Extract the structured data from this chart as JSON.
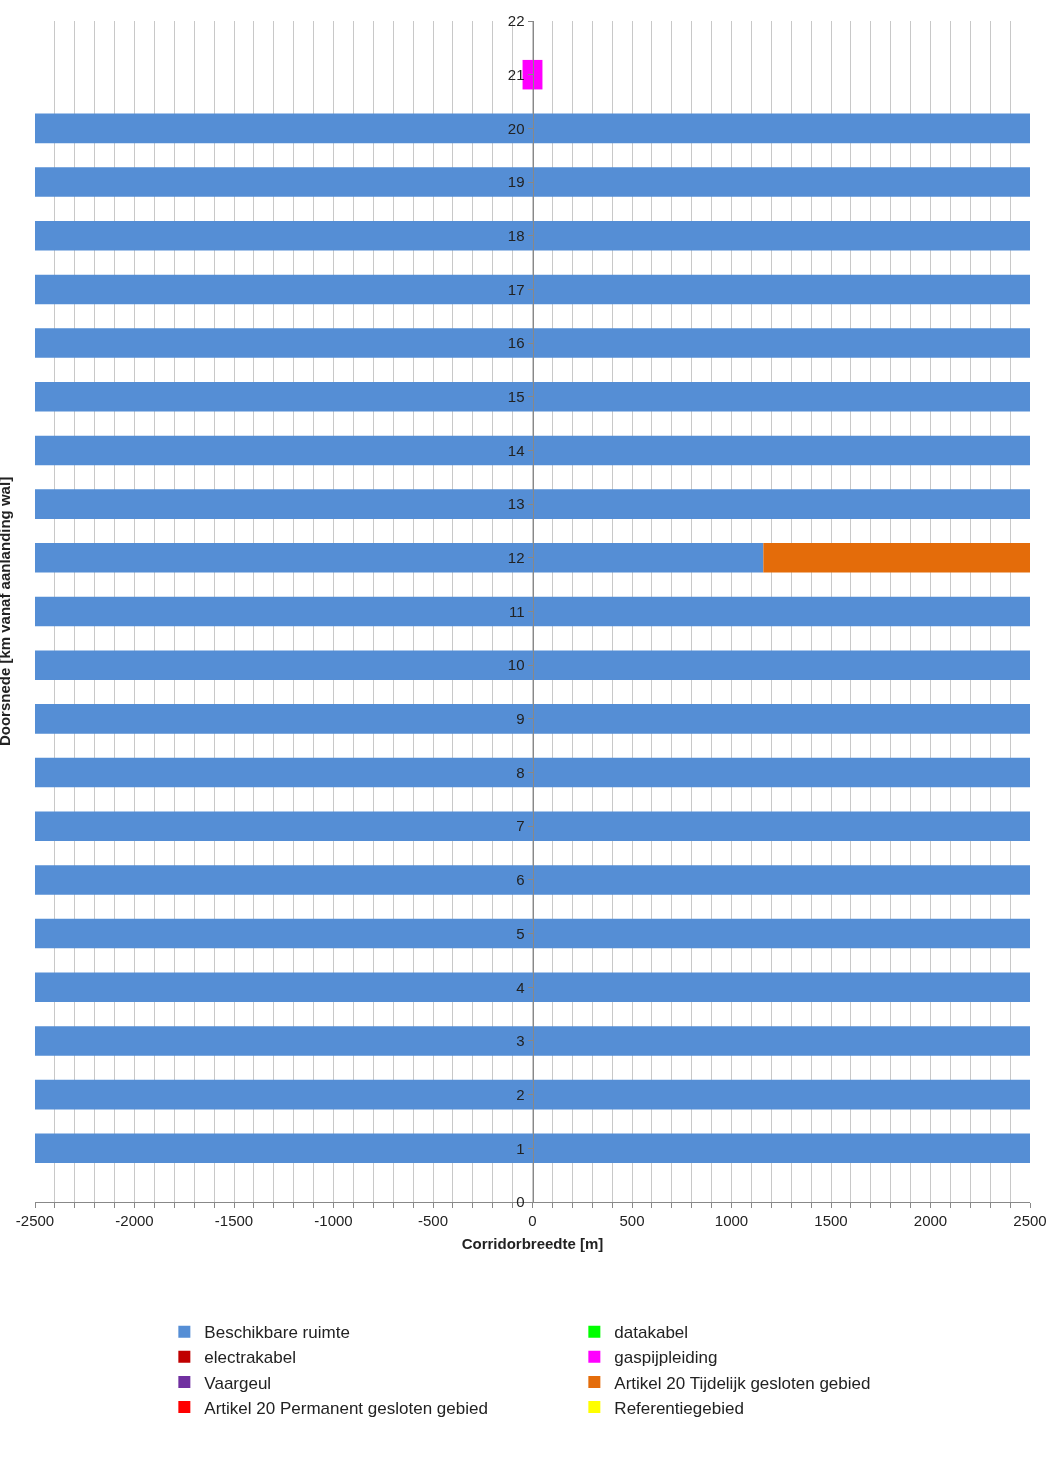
{
  "chart_data": {
    "type": "bar",
    "orientation": "horizontal",
    "xlabel": "Corridorbreedte [m]",
    "ylabel": "Doorsnede [km vanaf aanlanding wal]",
    "x": [
      1,
      2,
      3,
      4,
      5,
      6,
      7,
      8,
      9,
      10,
      11,
      12,
      13,
      14,
      15,
      16,
      17,
      18,
      19,
      20,
      21
    ],
    "series": [
      {
        "name": "Beschikbare ruimte",
        "color": "#558ed5",
        "values": [
          5000,
          5000,
          5000,
          5000,
          5000,
          5000,
          5000,
          5000,
          5000,
          5000,
          5000,
          3660,
          5000,
          5000,
          5000,
          5000,
          5000,
          5000,
          5000,
          5000,
          null
        ],
        "base": [
          -2500,
          -2500,
          -2500,
          -2500,
          -2500,
          -2500,
          -2500,
          -2500,
          -2500,
          -2500,
          -2500,
          -2500,
          -2500,
          -2500,
          -2500,
          -2500,
          -2500,
          -2500,
          -2500,
          -2500,
          null
        ]
      },
      {
        "name": "datakabel",
        "color": "#00ff00",
        "values": [
          null,
          null,
          null,
          null,
          null,
          null,
          null,
          null,
          null,
          null,
          null,
          null,
          null,
          null,
          null,
          null,
          null,
          null,
          null,
          null,
          null
        ]
      },
      {
        "name": "electrakabel",
        "color": "#c00000",
        "values": [
          null,
          null,
          null,
          null,
          null,
          null,
          null,
          null,
          null,
          null,
          null,
          null,
          null,
          null,
          null,
          null,
          null,
          null,
          null,
          null,
          null
        ]
      },
      {
        "name": "gaspijpleiding",
        "color": "#ff00ff",
        "values": [
          null,
          null,
          null,
          null,
          null,
          null,
          null,
          null,
          null,
          null,
          null,
          null,
          null,
          null,
          null,
          null,
          null,
          null,
          null,
          null,
          100
        ],
        "base": [
          null,
          null,
          null,
          null,
          null,
          null,
          null,
          null,
          null,
          null,
          null,
          null,
          null,
          null,
          null,
          null,
          null,
          null,
          null,
          null,
          -50
        ]
      },
      {
        "name": "Vaargeul",
        "color": "#7030a0",
        "values": [
          null,
          null,
          null,
          null,
          null,
          null,
          null,
          null,
          null,
          null,
          null,
          null,
          null,
          null,
          null,
          null,
          null,
          null,
          null,
          null,
          null
        ]
      },
      {
        "name": "Artikel 20 Tijdelijk gesloten gebied",
        "color": "#e46c0a",
        "values": [
          null,
          null,
          null,
          null,
          null,
          null,
          null,
          null,
          null,
          null,
          null,
          1340,
          null,
          null,
          null,
          null,
          null,
          null,
          null,
          null,
          null
        ],
        "base": [
          null,
          null,
          null,
          null,
          null,
          null,
          null,
          null,
          null,
          null,
          null,
          1160,
          null,
          null,
          null,
          null,
          null,
          null,
          null,
          null,
          null
        ]
      },
      {
        "name": "Artikel 20 Permanent gesloten gebied",
        "color": "#ff0000",
        "values": [
          null,
          null,
          null,
          null,
          null,
          null,
          null,
          null,
          null,
          null,
          null,
          null,
          null,
          null,
          null,
          null,
          null,
          null,
          null,
          null,
          null
        ]
      },
      {
        "name": "Referentiegebied",
        "color": "#ffff00",
        "values": [
          null,
          null,
          null,
          null,
          null,
          null,
          null,
          null,
          null,
          null,
          null,
          null,
          null,
          null,
          null,
          null,
          null,
          null,
          null,
          null,
          null
        ]
      }
    ],
    "xlim": [
      -2500,
      2500
    ],
    "xticks": [
      -2500,
      {
        "value": -2400,
        "label": null
      },
      {
        "value": -2300,
        "label": null
      },
      {
        "value": -2200,
        "label": null
      },
      {
        "value": -2100,
        "label": null
      },
      -2000,
      {
        "value": -1900,
        "label": null
      },
      {
        "value": -1800,
        "label": null
      },
      {
        "value": -1700,
        "label": null
      },
      {
        "value": -1600,
        "label": null
      },
      -1500,
      {
        "value": -1400,
        "label": null
      },
      {
        "value": -1300,
        "label": null
      },
      {
        "value": -1200,
        "label": null
      },
      {
        "value": -1100,
        "label": null
      },
      -1000,
      {
        "value": -900,
        "label": null
      },
      {
        "value": -800,
        "label": null
      },
      {
        "value": -700,
        "label": null
      },
      {
        "value": -600,
        "label": null
      },
      -500,
      {
        "value": -400,
        "label": null
      },
      {
        "value": -300,
        "label": null
      },
      {
        "value": -200,
        "label": null
      },
      {
        "value": -100,
        "label": null
      },
      0,
      {
        "value": 100,
        "label": null
      },
      {
        "value": 200,
        "label": null
      },
      {
        "value": 300,
        "label": null
      },
      {
        "value": 400,
        "label": null
      },
      500,
      {
        "value": 600,
        "label": null
      },
      {
        "value": 700,
        "label": null
      },
      {
        "value": 800,
        "label": null
      },
      {
        "value": 900,
        "label": null
      },
      1000,
      {
        "value": 1100,
        "label": null
      },
      {
        "value": 1200,
        "label": null
      },
      {
        "value": 1300,
        "label": null
      },
      {
        "value": 1400,
        "label": null
      },
      1500,
      {
        "value": 1600,
        "label": null
      },
      {
        "value": 1700,
        "label": null
      },
      {
        "value": 1800,
        "label": null
      },
      {
        "value": 1900,
        "label": null
      },
      2000,
      {
        "value": 2100,
        "label": null
      },
      {
        "value": 2200,
        "label": null
      },
      {
        "value": 2300,
        "label": null
      },
      {
        "value": 2400,
        "label": null
      },
      2500
    ],
    "ylim": [
      0,
      22
    ],
    "yticks": [
      0,
      1,
      2,
      3,
      4,
      5,
      6,
      7,
      8,
      9,
      10,
      11,
      12,
      13,
      14,
      15,
      16,
      17,
      18,
      19,
      20,
      21,
      22
    ],
    "grid": "x",
    "legend": "bottom"
  }
}
